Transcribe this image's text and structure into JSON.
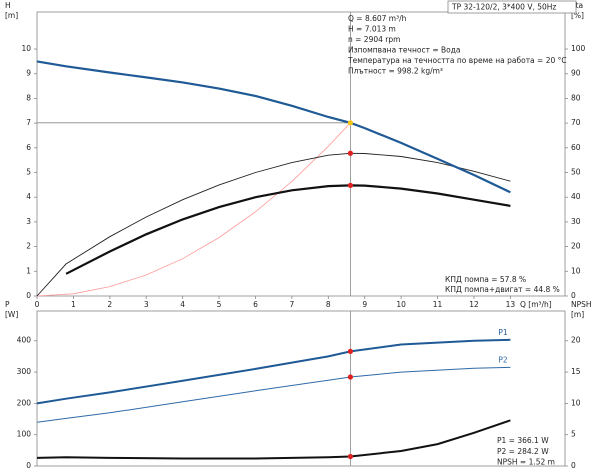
{
  "chart_data": [
    {
      "type": "line",
      "title": "TP 32-120/2, 3*400 V, 50Hz",
      "ylabel": [
        "H",
        "[m]"
      ],
      "y2label": [
        "eta",
        "[%]"
      ],
      "xlabel": "Q [m³/h]",
      "xlim": [
        0,
        14.5
      ],
      "xticks": [
        0,
        1,
        2,
        3,
        4,
        5,
        6,
        7,
        8,
        9,
        10,
        11,
        12,
        13
      ],
      "ylim": [
        0,
        11.5
      ],
      "yticks": [
        0,
        1,
        2,
        3,
        4,
        5,
        6,
        7,
        8,
        9,
        10
      ],
      "y2lim": [
        0,
        115
      ],
      "y2ticks": [
        0,
        10,
        20,
        30,
        40,
        50,
        60,
        70,
        80,
        90,
        100
      ],
      "notes": [
        "Q = 8.607 m³/h",
        "H = 7.013 m",
        "n = 2904 rpm",
        "Изпомпвана течност = Вода",
        "Температура на течността по време на работа = 20 °C",
        "Плътност = 998.2 kg/m³"
      ],
      "footnotes": [
        "КПД помпа = 57.8 %",
        "КПД помпа+двигат = 44.8 %"
      ],
      "operating_point": {
        "x": 8.607,
        "y": 7.013
      },
      "series": [
        {
          "color": "#ff9a9a",
          "line_width": 0.8,
          "x": [
            0,
            1,
            2,
            3,
            4,
            5,
            6,
            7,
            8,
            8.607
          ],
          "values": [
            0,
            0.09,
            0.38,
            0.85,
            1.51,
            2.37,
            3.41,
            4.64,
            6.06,
            7.013
          ]
        },
        {
          "color": "#222222",
          "line_width": 0.9,
          "axis": "y2",
          "x": [
            0,
            0.8,
            2,
            3,
            4,
            5,
            6,
            7,
            8,
            8.607,
            9,
            10,
            11,
            12,
            13
          ],
          "values": [
            0,
            13,
            24,
            32,
            39,
            45,
            50,
            54,
            57,
            57.8,
            57.7,
            56.5,
            54,
            50.5,
            46.5
          ]
        },
        {
          "color": "#111111",
          "line_width": 2.2,
          "axis": "y2",
          "x": [
            0.8,
            2,
            3,
            4,
            5,
            6,
            7,
            8,
            8.607,
            9,
            10,
            11,
            12,
            13
          ],
          "values": [
            9,
            18,
            25,
            31,
            36,
            40,
            42.8,
            44.5,
            44.8,
            44.7,
            43.5,
            41.5,
            39,
            36.5
          ]
        },
        {
          "color": "#1f5a96",
          "line_width": 2.2,
          "x": [
            0,
            0.8,
            2,
            3,
            4,
            5,
            6,
            7,
            8,
            8.607,
            9,
            10,
            11,
            12,
            13
          ],
          "values": [
            9.5,
            9.3,
            9.05,
            8.85,
            8.65,
            8.4,
            8.1,
            7.7,
            7.25,
            7.013,
            6.8,
            6.2,
            5.55,
            4.9,
            4.2
          ]
        }
      ],
      "markers": [
        {
          "x": 8.607,
          "y": 57.8,
          "axis": "y2",
          "color": "#e02020"
        },
        {
          "x": 8.607,
          "y": 44.8,
          "axis": "y2",
          "color": "#e02020"
        },
        {
          "x": 8.607,
          "y": 7.013,
          "color": "#f5c518"
        }
      ]
    },
    {
      "type": "line",
      "ylabel": [
        "P",
        "[W]"
      ],
      "y2label": [
        "NPSH",
        "[m]"
      ],
      "xlim": [
        0,
        14.5
      ],
      "ylim": [
        0,
        495
      ],
      "yticks": [
        0,
        100,
        200,
        300,
        400
      ],
      "y2lim": [
        0,
        24.75
      ],
      "y2ticks": [
        0,
        5,
        10,
        15,
        20
      ],
      "notes": [
        "P1 = 366.1 W",
        "P2 = 284.2 W",
        "NPSH = 1.52 m"
      ],
      "operating_point": {
        "x": 8.607
      },
      "series": [
        {
          "name": "P1",
          "color": "#1f5a96",
          "line_width": 2,
          "x": [
            0,
            0.8,
            2,
            4,
            6,
            8,
            8.607,
            10,
            12,
            13
          ],
          "values": [
            200,
            215,
            235,
            272,
            310,
            350,
            366.1,
            388,
            400,
            403
          ]
        },
        {
          "name": "P2",
          "color": "#2e6aa8",
          "line_width": 1,
          "x": [
            0,
            0.8,
            2,
            4,
            6,
            8,
            8.607,
            10,
            12,
            13
          ],
          "values": [
            140,
            152,
            170,
            205,
            240,
            274,
            284.2,
            300,
            312,
            315
          ]
        },
        {
          "color": "#111111",
          "line_width": 2,
          "axis": "y2",
          "x": [
            0,
            0.8,
            2,
            4,
            6,
            8,
            8.607,
            10,
            11,
            12,
            13
          ],
          "values": [
            1.3,
            1.4,
            1.3,
            1.2,
            1.2,
            1.4,
            1.52,
            2.4,
            3.5,
            5.3,
            7.3
          ]
        }
      ],
      "markers": [
        {
          "x": 8.607,
          "y": 366.1,
          "color": "#e02020"
        },
        {
          "x": 8.607,
          "y": 284.2,
          "color": "#e02020"
        },
        {
          "x": 8.607,
          "y": 1.52,
          "axis": "y2",
          "color": "#e02020"
        }
      ]
    }
  ]
}
